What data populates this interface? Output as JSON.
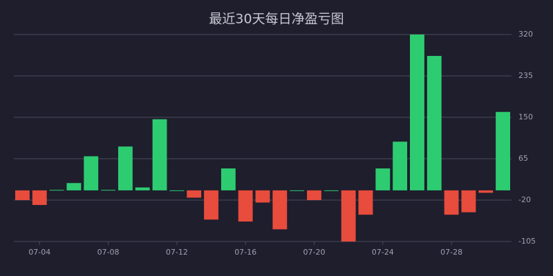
{
  "chart_data": {
    "type": "bar",
    "title": "最近30天每日净盈亏图",
    "categories": [
      null,
      "07-04",
      null,
      null,
      null,
      "07-08",
      null,
      null,
      null,
      "07-12",
      null,
      null,
      null,
      "07-16",
      null,
      null,
      null,
      "07-20",
      null,
      null,
      null,
      "07-24",
      null,
      null,
      null,
      "07-28",
      null,
      null,
      null
    ],
    "values": [
      -20,
      -30,
      1,
      15,
      70,
      1,
      90,
      6,
      146,
      0,
      -15,
      -60,
      45,
      -64,
      -25,
      -80,
      0,
      -20,
      0,
      -105,
      -50,
      45,
      100,
      320,
      276,
      -50,
      -45,
      -5,
      161
    ],
    "positive_color": "#2ecc71",
    "negative_color": "#e74c3c",
    "ylim": [
      -105,
      320
    ],
    "yticks": [
      320,
      235,
      150,
      65,
      -20,
      -105
    ],
    "grid": true
  }
}
